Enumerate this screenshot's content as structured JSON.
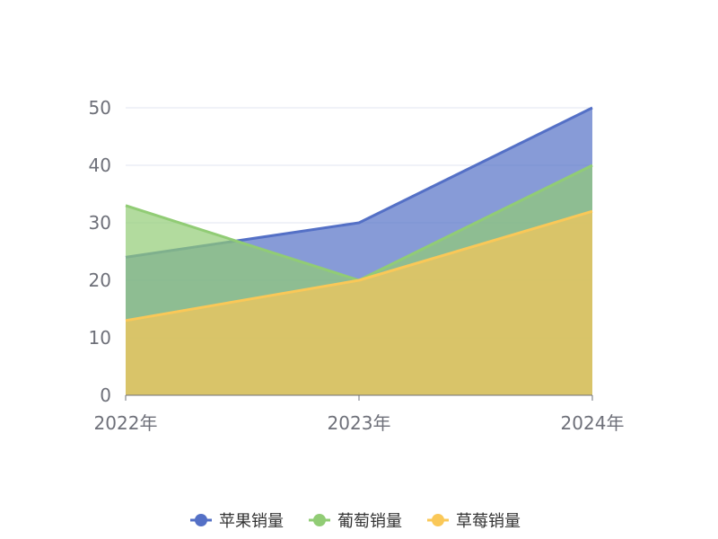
{
  "chart_data": {
    "type": "area",
    "categories": [
      "2022年",
      "2023年",
      "2024年"
    ],
    "series": [
      {
        "name": "苹果销量",
        "values": [
          24,
          30,
          50
        ],
        "color": "#5470c6"
      },
      {
        "name": "葡萄销量",
        "values": [
          33,
          20,
          40
        ],
        "color": "#91cc75"
      },
      {
        "name": "草莓销量",
        "values": [
          13,
          20,
          32
        ],
        "color": "#fac858"
      }
    ],
    "ylim": [
      0,
      50
    ],
    "yticks": [
      "0",
      "10",
      "20",
      "30",
      "40",
      "50"
    ],
    "grid": true,
    "legend_position": "bottom-center"
  }
}
